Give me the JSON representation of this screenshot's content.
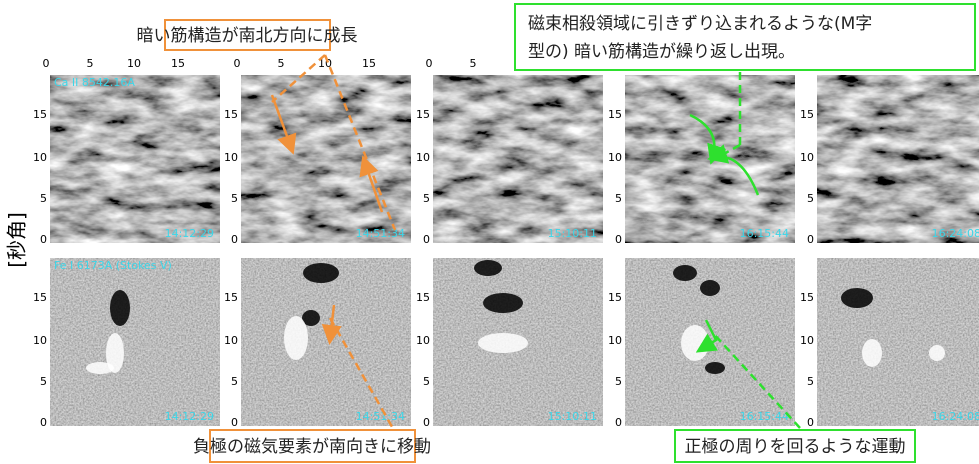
{
  "y_axis_label": "[秒角]",
  "x_ticks": [
    "0",
    "5",
    "10",
    "15"
  ],
  "y_ticks": [
    "15",
    "10",
    "5",
    "0"
  ],
  "rows": [
    {
      "label": "Ca II 8542.16A"
    },
    {
      "label": "Fe I 6173A (Stokes V)"
    }
  ],
  "times": [
    "14:12:29",
    "14:51:34",
    "15:10:11",
    "16:15:44",
    "16:24:08"
  ],
  "annotations": {
    "top_left": "暗い筋構造が南北方向に成長",
    "top_right": [
      "磁束相殺領域に引きずり込まれるような(M字",
      "型の) 暗い筋構造が繰り返し出現。"
    ],
    "bottom_left": "負極の磁気要素が南向きに移動",
    "bottom_right": "正極の周りを回るような運動"
  }
}
